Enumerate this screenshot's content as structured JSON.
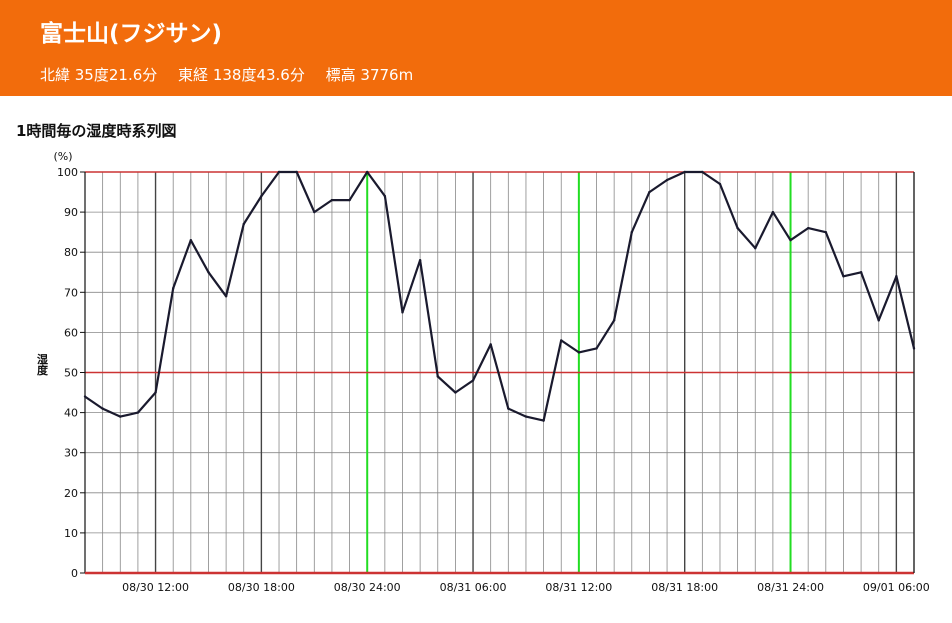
{
  "header": {
    "title": "富士山(フジサン)",
    "latitude": "北緯 35度21.6分",
    "longitude": "東経 138度43.6分",
    "elevation": "標高 3776m"
  },
  "chart_heading": "1時間毎の湿度時系列図",
  "colors": {
    "banner": "#f26c0c",
    "line": "#1a1a2e",
    "threshold": "#cc3333",
    "day_marker": "#22dd22",
    "grid": "#888888"
  },
  "chart_data": {
    "type": "line",
    "title": "1時間毎の湿度時系列図",
    "ylabel": "湿度",
    "yunit": "(%)",
    "ylim": [
      0,
      100
    ],
    "yticks": [
      0,
      10,
      20,
      30,
      40,
      50,
      60,
      70,
      80,
      90,
      100
    ],
    "xticks": [
      "08/30 12:00",
      "08/30 18:00",
      "08/30 24:00",
      "08/31 06:00",
      "08/31 12:00",
      "08/31 18:00",
      "08/31 24:00",
      "09/01 06:00"
    ],
    "x_start": "08/30 08:00",
    "x_end": "09/01 06:00",
    "grid": true,
    "threshold_lines": [
      50,
      100
    ],
    "day_marker_labels": [
      "08/30 24:00",
      "08/31 12:00",
      "08/31 24:00"
    ],
    "series": [
      {
        "values": [
          44,
          41,
          39,
          40,
          45,
          71,
          83,
          75,
          69,
          87,
          94,
          100,
          100,
          90,
          93,
          93,
          100,
          94,
          65,
          78,
          49,
          45,
          48,
          57,
          41,
          39,
          38,
          58,
          55,
          56,
          63,
          85,
          95,
          98,
          100,
          100,
          97,
          86,
          81,
          90,
          83,
          86,
          85,
          74,
          75,
          63,
          74,
          56
        ]
      }
    ]
  }
}
